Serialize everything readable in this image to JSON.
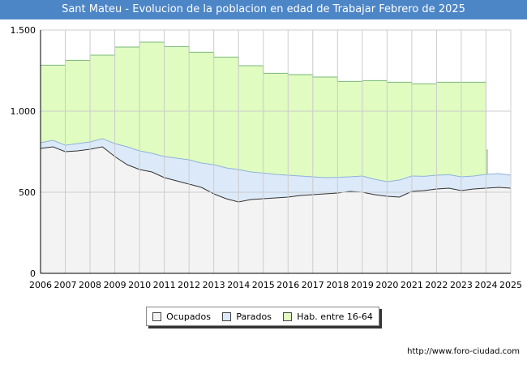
{
  "title": "Sant Mateu - Evolucion de la poblacion en edad de Trabajar Febrero de 2025",
  "source_url": "http://www.foro-ciudad.com",
  "colors": {
    "title_bg": "#4d86c6",
    "hab_fill": "#e0fcc0",
    "hab_line": "#7ab87a",
    "parados_fill": "#dce9f8",
    "parados_line": "#8db3dc",
    "ocupados_fill": "#f3f3f3",
    "ocupados_line": "#333333",
    "grid": "#cccccc"
  },
  "chart_data": {
    "type": "area",
    "title": "Sant Mateu - Evolucion de la poblacion en edad de Trabajar Febrero de 2025",
    "xlim": [
      2006,
      2025
    ],
    "ylim": [
      0,
      1500
    ],
    "x_ticks": [
      "2006",
      "2007",
      "2008",
      "2009",
      "2010",
      "2011",
      "2012",
      "2013",
      "2014",
      "2015",
      "2016",
      "2017",
      "2018",
      "2019",
      "2020",
      "2021",
      "2022",
      "2023",
      "2024",
      "2025"
    ],
    "y_ticks": [
      {
        "value": 0,
        "label": "0"
      },
      {
        "value": 500,
        "label": "500"
      },
      {
        "value": 1000,
        "label": "1.000"
      },
      {
        "value": 1500,
        "label": "1.500"
      }
    ],
    "grid": true,
    "legend_position": "bottom",
    "series": [
      {
        "name": "Hab. entre 16-64",
        "step": true,
        "x": [
          2006,
          2007,
          2008,
          2009,
          2010,
          2011,
          2012,
          2013,
          2014,
          2015,
          2016,
          2017,
          2018,
          2019,
          2020,
          2021,
          2022,
          2023,
          2024
        ],
        "values": [
          1283,
          1313,
          1345,
          1395,
          1425,
          1398,
          1363,
          1333,
          1280,
          1233,
          1225,
          1210,
          1183,
          1188,
          1178,
          1168,
          1178,
          1178,
          760
        ]
      },
      {
        "name": "Parados",
        "x": [
          2006,
          2006.5,
          2007,
          2007.5,
          2008,
          2008.5,
          2009,
          2009.5,
          2010,
          2010.5,
          2011,
          2011.5,
          2012,
          2012.5,
          2013,
          2013.5,
          2014,
          2014.5,
          2015,
          2015.5,
          2016,
          2016.5,
          2017,
          2017.5,
          2018,
          2018.5,
          2019,
          2019.5,
          2020,
          2020.5,
          2021,
          2021.5,
          2022,
          2022.5,
          2023,
          2023.5,
          2024,
          2024.5,
          2025
        ],
        "values": [
          805,
          820,
          790,
          800,
          810,
          830,
          800,
          780,
          755,
          740,
          720,
          710,
          700,
          680,
          670,
          650,
          640,
          625,
          618,
          610,
          605,
          600,
          595,
          590,
          592,
          595,
          600,
          580,
          565,
          575,
          600,
          598,
          605,
          608,
          595,
          600,
          610,
          615,
          605
        ]
      },
      {
        "name": "Ocupados",
        "x": [
          2006,
          2006.5,
          2007,
          2007.5,
          2008,
          2008.5,
          2009,
          2009.5,
          2010,
          2010.5,
          2011,
          2011.5,
          2012,
          2012.5,
          2013,
          2013.5,
          2014,
          2014.5,
          2015,
          2015.5,
          2016,
          2016.5,
          2017,
          2017.5,
          2018,
          2018.5,
          2019,
          2019.5,
          2020,
          2020.5,
          2021,
          2021.5,
          2022,
          2022.5,
          2023,
          2023.5,
          2024,
          2024.5,
          2025
        ],
        "values": [
          770,
          780,
          750,
          755,
          765,
          780,
          720,
          670,
          640,
          625,
          590,
          570,
          550,
          530,
          490,
          460,
          440,
          455,
          460,
          465,
          470,
          480,
          485,
          490,
          495,
          505,
          500,
          485,
          475,
          470,
          505,
          510,
          520,
          525,
          510,
          520,
          525,
          530,
          525
        ]
      }
    ]
  },
  "legend": {
    "ocupados": "Ocupados",
    "parados": "Parados",
    "hab": "Hab. entre 16-64"
  }
}
